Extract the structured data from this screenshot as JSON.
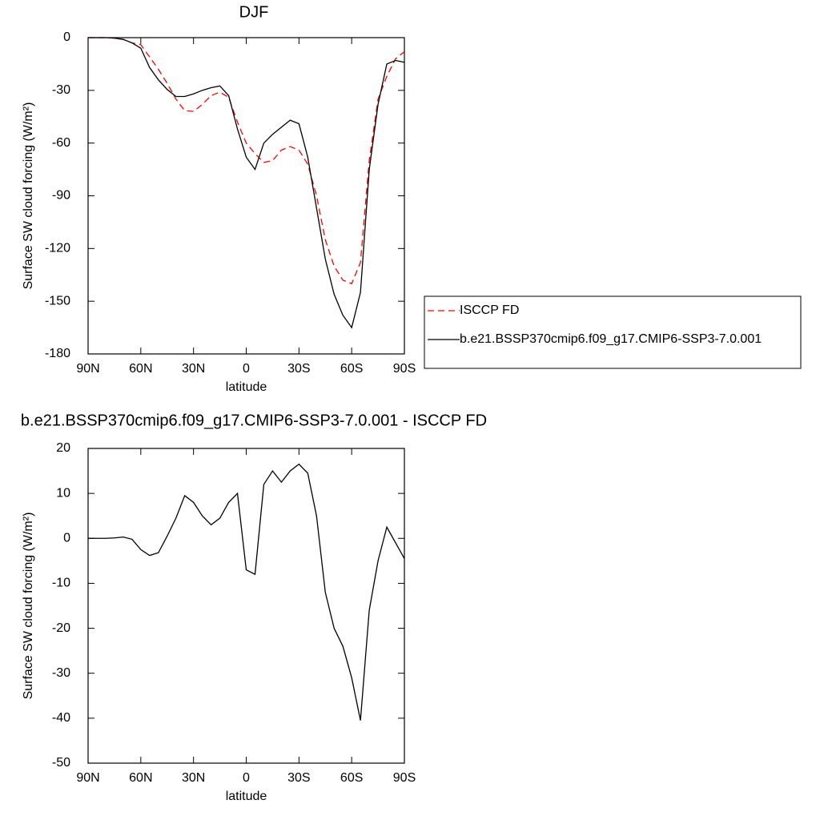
{
  "chart_data": [
    {
      "type": "line",
      "title": "DJF",
      "xlabel": "latitude",
      "ylabel": "Surface SW cloud forcing (W/m²)",
      "x": [
        90,
        85,
        80,
        75,
        70,
        65,
        60,
        55,
        50,
        45,
        40,
        35,
        30,
        25,
        20,
        15,
        10,
        5,
        0,
        -5,
        -10,
        -15,
        -20,
        -25,
        -30,
        -35,
        -40,
        -45,
        -50,
        -55,
        -60,
        -65,
        -70,
        -75,
        -80,
        -85,
        -90
      ],
      "series": [
        {
          "name": "ISCCP FD",
          "color": "#ff0000",
          "line_style": "dashed",
          "values": [
            0,
            0,
            0,
            -0.3,
            -1,
            -3,
            -4,
            -11,
            -18,
            -26,
            -35,
            -41.5,
            -42,
            -38,
            -33,
            -31,
            -34,
            -48,
            -60,
            -66,
            -71,
            -70,
            -64,
            -62,
            -64,
            -72,
            -90,
            -115,
            -130,
            -138,
            -140,
            -128,
            -70,
            -35,
            -22,
            -12,
            -8
          ]
        },
        {
          "name": "b.e21.BSSP370cmip6.f09_g17.CMIP6-SSP3-7.0.001",
          "color": "#000000",
          "line_style": "solid",
          "values": [
            0,
            0,
            0,
            -0.3,
            -1,
            -3,
            -6,
            -17,
            -24,
            -29.5,
            -33.5,
            -33.5,
            -32,
            -30,
            -28.5,
            -27.5,
            -33,
            -52,
            -68,
            -75,
            -60,
            -55,
            -51,
            -47,
            -49,
            -68,
            -97,
            -126,
            -146,
            -158,
            -165,
            -145,
            -75,
            -38,
            -15,
            -13,
            -14
          ]
        }
      ],
      "xlim": [
        90,
        -90
      ],
      "xticks": [
        {
          "value": 90,
          "label": "90N"
        },
        {
          "value": 60,
          "label": "60N"
        },
        {
          "value": 30,
          "label": "30N"
        },
        0,
        {
          "value": -30,
          "label": "30S"
        },
        {
          "value": -60,
          "label": "60S"
        },
        {
          "value": -90,
          "label": "90S"
        }
      ],
      "ylim": [
        -180,
        0
      ],
      "yticks": [
        0,
        -30,
        -60,
        -90,
        -120,
        -150,
        -180
      ],
      "legend": "right"
    },
    {
      "type": "line",
      "title": "b.e21.BSSP370cmip6.f09_g17.CMIP6-SSP3-7.0.001 - ISCCP FD",
      "xlabel": "latitude",
      "ylabel": "Surface SW cloud forcing (W/m²)",
      "x": [
        90,
        85,
        80,
        75,
        70,
        65,
        60,
        55,
        50,
        45,
        40,
        35,
        30,
        25,
        20,
        15,
        10,
        5,
        0,
        -5,
        -10,
        -15,
        -20,
        -25,
        -30,
        -35,
        -40,
        -45,
        -50,
        -55,
        -60,
        -65,
        -70,
        -75,
        -80,
        -85,
        -90
      ],
      "color": "#000000",
      "values": [
        0,
        0,
        0,
        0.1,
        0.3,
        -0.2,
        -2.5,
        -3.8,
        -3.2,
        0.5,
        4.5,
        9.5,
        8,
        5,
        3,
        4.5,
        8,
        10,
        -7,
        -8,
        12,
        15,
        12.5,
        15,
        16.5,
        14.5,
        5,
        -12,
        -20,
        -24,
        -31,
        -40.5,
        -16,
        -5,
        2.5,
        -1,
        -4.5
      ],
      "xlim": [
        90,
        -90
      ],
      "xticks": [
        {
          "value": 90,
          "label": "90N"
        },
        {
          "value": 60,
          "label": "60N"
        },
        {
          "value": 30,
          "label": "30N"
        },
        0,
        {
          "value": -30,
          "label": "30S"
        },
        {
          "value": -60,
          "label": "60S"
        },
        {
          "value": -90,
          "label": "90S"
        }
      ],
      "ylim": [
        -50,
        20
      ],
      "yticks": [
        20,
        10,
        0,
        -10,
        -20,
        -30,
        -40,
        -50
      ]
    }
  ]
}
